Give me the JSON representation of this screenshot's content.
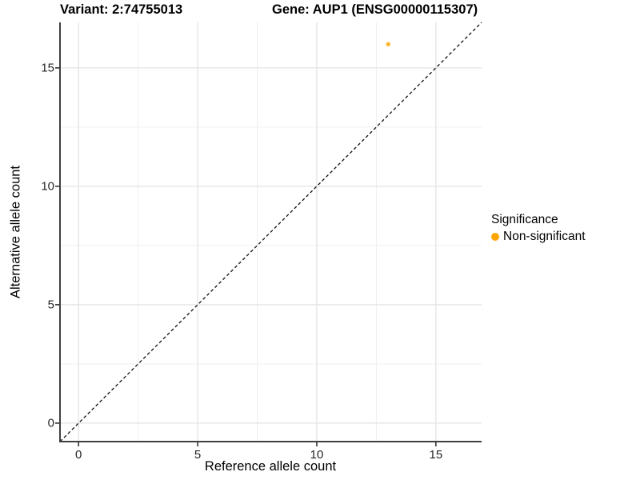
{
  "header": {
    "variant_title": "Variant: 2:74755013",
    "gene_title": "Gene: AUP1 (ENSG00000115307)"
  },
  "legend": {
    "title": "Significance",
    "items": [
      {
        "label": "Non-significant",
        "color": "#FFA500",
        "marker": "circle"
      }
    ]
  },
  "colors": {
    "point": "#FFA500",
    "axis_line": "#404040",
    "tick_mark": "#333333",
    "tick_label": "#262626",
    "grid_major": "#e3e3e3",
    "grid_minor": "#efefef",
    "identity_line": "#111111",
    "background": "#ffffff"
  },
  "chart_data": {
    "type": "scatter",
    "title": "Variant: 2:74755013 — Gene: AUP1 (ENSG00000115307)",
    "xlabel": "Reference allele count",
    "ylabel": "Alternative allele count",
    "xlim": [
      -0.78,
      16.92
    ],
    "ylim": [
      -0.78,
      16.92
    ],
    "x_ticks": [
      0,
      5,
      10,
      15
    ],
    "y_ticks": [
      0,
      5,
      10,
      15
    ],
    "x_minor_ticks": [
      2.5,
      7.5,
      12.5
    ],
    "y_minor_ticks": [
      2.5,
      7.5,
      12.5
    ],
    "grid": true,
    "legend_position": "right",
    "series": [
      {
        "name": "Non-significant",
        "color": "#FFA500",
        "points": [
          {
            "x": 13,
            "y": 16
          }
        ]
      }
    ],
    "reference_line": {
      "kind": "identity y=x",
      "style": "dashed",
      "color": "#111111",
      "from": [
        -0.78,
        -0.78
      ],
      "to": [
        16.92,
        16.92
      ]
    }
  }
}
